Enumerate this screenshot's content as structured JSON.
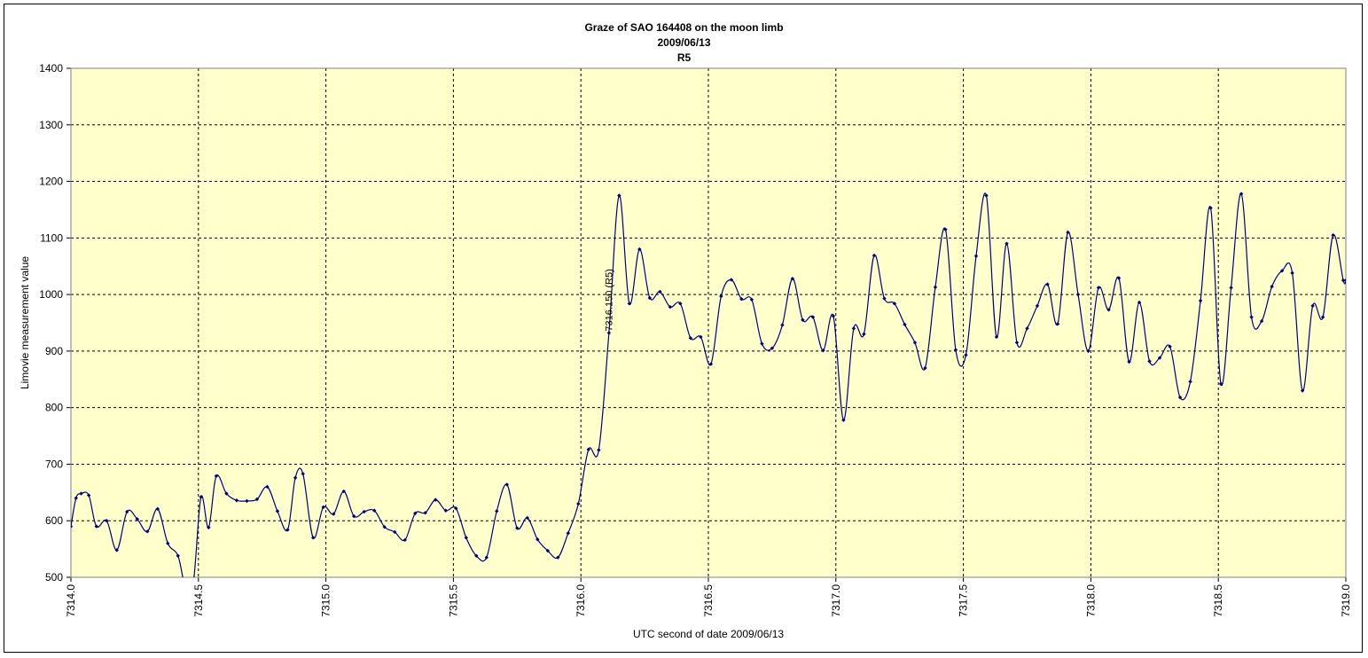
{
  "chart_data": {
    "type": "line",
    "title_lines": [
      "Graze of SAO  164408 on the moon limb",
      "2009/06/13",
      "R5"
    ],
    "xlabel": "UTC  second of date 2009/06/13",
    "ylabel": "Limovie measurement value",
    "xlim": [
      7314.0,
      7319.0
    ],
    "ylim": [
      500,
      1400
    ],
    "x_ticks": [
      "7314.0",
      "7314.5",
      "7315.0",
      "7315.5",
      "7316.0",
      "7316.5",
      "7317.0",
      "7317.5",
      "7318.0",
      "7318.5",
      "7319.0"
    ],
    "y_ticks": [
      "500",
      "600",
      "700",
      "800",
      "900",
      "1000",
      "1100",
      "1200",
      "1300",
      "1400"
    ],
    "grid": true,
    "plot_background": "#ffffcc",
    "line_color": "#000080",
    "annotation": {
      "text": "7316.150 (R5)",
      "x": 7316.15,
      "y": 935
    },
    "series": [
      {
        "x": [
          7314.0,
          7314.02,
          7314.04,
          7314.07,
          7314.1,
          7314.14,
          7314.18,
          7314.22,
          7314.26,
          7314.3,
          7314.34,
          7314.38,
          7314.42,
          7314.45,
          7314.48,
          7314.51,
          7314.54,
          7314.57,
          7314.61,
          7314.65,
          7314.69,
          7314.73,
          7314.77,
          7314.81,
          7314.85,
          7314.88,
          7314.91,
          7314.95,
          7314.99,
          7315.03,
          7315.07,
          7315.11,
          7315.15,
          7315.19,
          7315.23,
          7315.27,
          7315.31,
          7315.35,
          7315.39,
          7315.43,
          7315.47,
          7315.51,
          7315.55,
          7315.59,
          7315.63,
          7315.67,
          7315.71,
          7315.75,
          7315.79,
          7315.83,
          7315.87,
          7315.91,
          7315.95,
          7315.99,
          7316.03,
          7316.07,
          7316.11,
          7316.15,
          7316.19,
          7316.23,
          7316.27,
          7316.31,
          7316.35,
          7316.39,
          7316.43,
          7316.47,
          7316.51,
          7316.55,
          7316.59,
          7316.63,
          7316.67,
          7316.71,
          7316.75,
          7316.79,
          7316.83,
          7316.87,
          7316.91,
          7316.95,
          7316.99,
          7317.03,
          7317.07,
          7317.11,
          7317.15,
          7317.19,
          7317.23,
          7317.27,
          7317.31,
          7317.35,
          7317.39,
          7317.43,
          7317.47,
          7317.51,
          7317.55,
          7317.59,
          7317.63,
          7317.67,
          7317.71,
          7317.75,
          7317.79,
          7317.83,
          7317.87,
          7317.91,
          7317.95,
          7317.99,
          7318.03,
          7318.07,
          7318.11,
          7318.15,
          7318.19,
          7318.23,
          7318.27,
          7318.31,
          7318.35,
          7318.39,
          7318.43,
          7318.47,
          7318.51,
          7318.55,
          7318.59,
          7318.63,
          7318.67,
          7318.71,
          7318.75,
          7318.79,
          7318.83,
          7318.87,
          7318.91,
          7318.95,
          7318.99,
          7319.0
        ],
        "y": [
          590,
          640,
          648,
          645,
          590,
          600,
          548,
          616,
          603,
          581,
          621,
          560,
          538,
          480,
          490,
          642,
          588,
          679,
          648,
          636,
          635,
          638,
          660,
          617,
          584,
          676,
          683,
          570,
          624,
          612,
          652,
          608,
          616,
          618,
          589,
          580,
          566,
          613,
          614,
          637,
          618,
          622,
          570,
          538,
          535,
          617,
          664,
          587,
          605,
          567,
          547,
          535,
          578,
          630,
          726,
          725,
          932,
          1175,
          984,
          1080,
          994,
          1005,
          978,
          984,
          923,
          925,
          877,
          997,
          1026,
          992,
          991,
          913,
          905,
          946,
          1028,
          955,
          960,
          901,
          962,
          778,
          940,
          930,
          1069,
          993,
          984,
          947,
          915,
          870,
          1013,
          1115,
          902,
          893,
          1068,
          1175,
          925,
          1090,
          915,
          940,
          980,
          1018,
          948,
          1110,
          1000,
          900,
          1012,
          973,
          1029,
          881,
          986,
          882,
          888,
          908,
          818,
          846,
          989,
          1153,
          842,
          1012,
          1178,
          960,
          953,
          1014,
          1042,
          1038,
          830,
          980,
          960,
          1105,
          1025,
          1025
        ]
      }
    ]
  }
}
